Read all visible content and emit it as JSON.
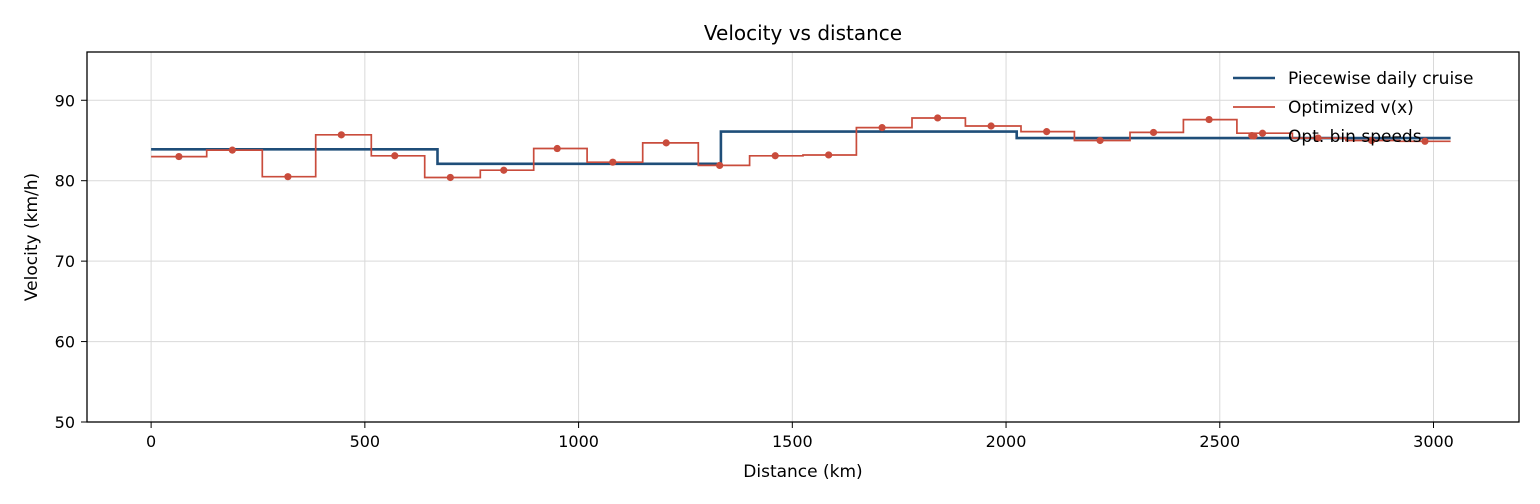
{
  "chart_data": {
    "type": "line",
    "title": "Velocity vs distance",
    "xlabel": "Distance (km)",
    "ylabel": "Velocity (km/h)",
    "xlim": [
      -150,
      3200
    ],
    "ylim": [
      50,
      96
    ],
    "xticks": [
      0,
      500,
      1000,
      1500,
      2000,
      2500,
      3000
    ],
    "yticks": [
      50,
      60,
      70,
      80,
      90
    ],
    "grid": true,
    "legend_position": "top-right",
    "series": [
      {
        "name": "Piecewise daily cruise",
        "style": "step",
        "color": "#1f4e79",
        "breaks": [
          0,
          670,
          1333,
          2025,
          3040
        ],
        "values": [
          83.9,
          82.1,
          86.1,
          85.3
        ]
      },
      {
        "name": "Optimized v(x)",
        "style": "step",
        "color": "#c94c3c",
        "breaks": [
          0,
          130,
          260,
          385,
          515,
          640,
          770,
          895,
          1020,
          1150,
          1280,
          1400,
          1525,
          1650,
          1780,
          1905,
          2035,
          2160,
          2290,
          2415,
          2540,
          2670,
          2795,
          2920,
          3040
        ],
        "values": [
          83.0,
          83.8,
          80.5,
          85.7,
          83.1,
          80.4,
          81.3,
          84.0,
          82.3,
          84.7,
          81.9,
          83.1,
          83.2,
          86.6,
          87.8,
          86.8,
          86.1,
          85.0,
          86.0,
          87.6,
          85.9,
          85.3,
          85.0,
          84.9
        ]
      },
      {
        "name": "Opt. bin speeds",
        "style": "scatter",
        "color": "#c94c3c",
        "x": [
          65,
          190,
          320,
          445,
          570,
          700,
          825,
          950,
          1080,
          1205,
          1330,
          1460,
          1585,
          1710,
          1840,
          1965,
          2095,
          2220,
          2345,
          2475,
          2575,
          2600,
          2730,
          2855,
          2980
        ],
        "y": [
          83.0,
          83.8,
          80.5,
          85.7,
          83.1,
          80.4,
          81.3,
          84.0,
          82.3,
          84.7,
          81.9,
          83.1,
          83.2,
          86.6,
          87.8,
          86.8,
          86.1,
          85.0,
          86.0,
          87.6,
          85.6,
          85.9,
          85.3,
          85.0,
          84.9
        ]
      }
    ]
  }
}
